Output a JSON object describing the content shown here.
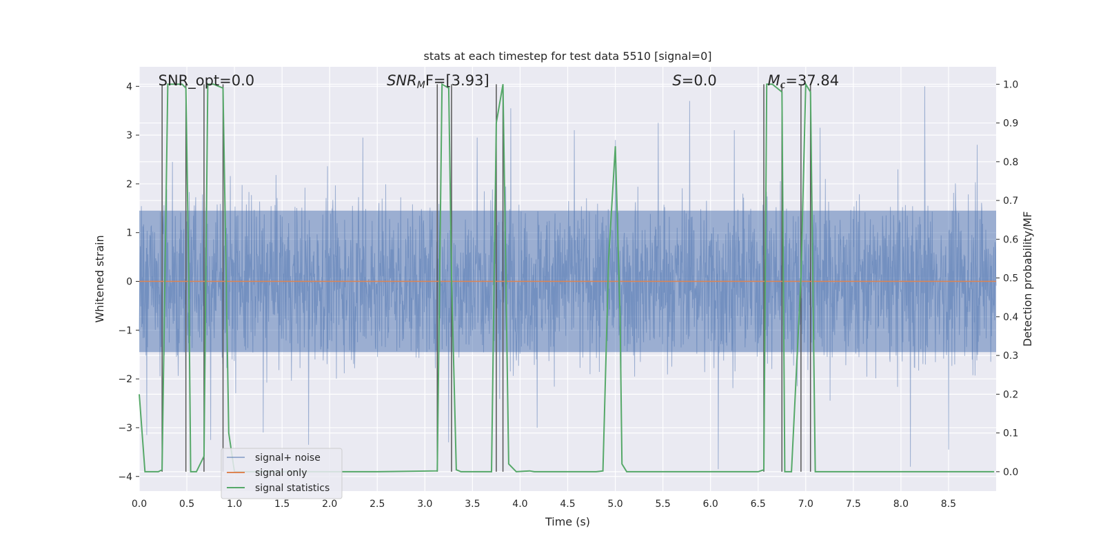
{
  "chart_data": {
    "type": "line",
    "title": "stats at each timestep for test data 5510 [signal=0]",
    "xlabel": "Time (s)",
    "ylabel": "Whitened strain",
    "ylabel_right": "Detection probability/MF",
    "xlim": [
      0.0,
      9.0
    ],
    "ylim": [
      -4.3,
      4.4
    ],
    "ylim_right": [
      -0.05,
      1.045
    ],
    "x_ticks": [
      "0.0",
      "0.5",
      "1.0",
      "1.5",
      "2.0",
      "2.5",
      "3.0",
      "3.5",
      "4.0",
      "4.5",
      "5.0",
      "5.5",
      "6.0",
      "6.5",
      "7.0",
      "7.5",
      "8.0",
      "8.5"
    ],
    "y_ticks": [
      -4,
      -3,
      -2,
      -1,
      0,
      1,
      2,
      3,
      4
    ],
    "y_tick_labels": [
      "−4",
      "−3",
      "−2",
      "−1",
      "0",
      "1",
      "2",
      "3",
      "4"
    ],
    "y2_ticks": [
      "0.0",
      "0.1",
      "0.2",
      "0.3",
      "0.4",
      "0.5",
      "0.6",
      "0.7",
      "0.8",
      "0.9",
      "1.0"
    ],
    "grid": true,
    "legend_position": "lower-left",
    "annotations": {
      "snr_opt": "SNR_opt=0.0",
      "snr_mf_symbol": "SNR",
      "snr_mf_sub": "M",
      "snr_mf_rest": "F=[3.93]",
      "s_symbol": "S",
      "s_rest": "=0.0",
      "mc_symbol": "M",
      "mc_sub": "c",
      "mc_rest": "=37.84"
    },
    "series": [
      {
        "name": "signal+ noise",
        "color": "#4c72b0",
        "description": "whitened noise, roughly within [-3.9, 4.0], dense fill around ±1.5",
        "peaks": [
          [
            0.08,
            -3.15
          ],
          [
            0.35,
            2.45
          ],
          [
            0.75,
            -3.25
          ],
          [
            1.3,
            -3.1
          ],
          [
            1.78,
            -3.35
          ],
          [
            2.35,
            2.95
          ],
          [
            3.25,
            -3.3
          ],
          [
            3.55,
            2.95
          ],
          [
            3.9,
            3.55
          ],
          [
            4.18,
            -3.0
          ],
          [
            4.57,
            3.1
          ],
          [
            5.0,
            2.9
          ],
          [
            5.45,
            3.25
          ],
          [
            5.78,
            3.7
          ],
          [
            6.08,
            -3.85
          ],
          [
            6.25,
            3.1
          ],
          [
            7.15,
            3.15
          ],
          [
            8.1,
            -3.8
          ],
          [
            8.25,
            4.0
          ],
          [
            8.5,
            -3.45
          ],
          [
            8.8,
            2.8
          ]
        ]
      },
      {
        "name": "signal only",
        "color": "#dd8452",
        "values_y": [
          0,
          0
        ]
      },
      {
        "name": "signal statistics",
        "color": "#55a868",
        "axis": "right",
        "x": [
          0.0,
          0.06,
          0.1,
          0.2,
          0.24,
          0.3,
          0.45,
          0.49,
          0.52,
          0.54,
          0.6,
          0.68,
          0.72,
          0.78,
          0.88,
          0.94,
          1.0,
          1.1,
          2.5,
          3.13,
          3.18,
          3.25,
          3.28,
          3.33,
          3.38,
          3.5,
          3.7,
          3.75,
          3.82,
          3.88,
          3.96,
          4.1,
          4.15,
          4.5,
          4.8,
          4.87,
          4.93,
          5.0,
          5.05,
          5.07,
          5.12,
          5.5,
          6.0,
          6.5,
          6.56,
          6.59,
          6.65,
          6.75,
          6.78,
          6.85,
          6.95,
          7.0,
          7.05,
          7.1,
          7.5,
          8.0,
          8.5,
          8.98
        ],
        "y": [
          0.2,
          0.0,
          0.0,
          0.0,
          0.005,
          1.0,
          1.0,
          0.99,
          0.5,
          0.0,
          0.0,
          0.04,
          1.0,
          1.0,
          0.99,
          0.1,
          0.0,
          0.0,
          0.0,
          0.002,
          1.0,
          0.99,
          0.5,
          0.005,
          0.0,
          0.0,
          0.0,
          0.9,
          1.0,
          0.02,
          0.0,
          0.002,
          0.0,
          0.0,
          0.0,
          0.002,
          0.55,
          0.84,
          0.4,
          0.02,
          0.0,
          0.0,
          0.0,
          0.0,
          0.005,
          1.0,
          1.0,
          0.98,
          0.0,
          0.0,
          0.5,
          1.0,
          0.98,
          0.0,
          0.0,
          0.0,
          0.0,
          0.0
        ]
      },
      {
        "name": "event markers",
        "color": "#555555",
        "x": [
          0.24,
          0.49,
          0.68,
          0.88,
          3.13,
          3.28,
          3.75,
          3.82,
          6.56,
          6.75,
          6.95,
          7.05
        ]
      }
    ]
  }
}
